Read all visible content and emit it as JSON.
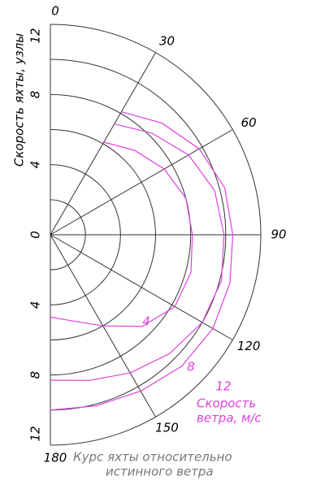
{
  "chart_data": {
    "type": "polar",
    "ylabel": "Скорость яхты, узлы",
    "xlabel": [
      "Курс яхты относительно",
      "истинного ветра"
    ],
    "legend_title": [
      "Скорость",
      "ветра, м/с"
    ],
    "rlim": [
      0,
      12
    ],
    "rticks": [
      0,
      4,
      8,
      12
    ],
    "rgrid": [
      2,
      4,
      6,
      8,
      10,
      12
    ],
    "thetaticks": [
      0,
      30,
      60,
      90,
      120,
      150,
      180
    ],
    "x": [
      30,
      45,
      60,
      75,
      90,
      105,
      120,
      135,
      150,
      165,
      180
    ],
    "series": [
      {
        "name": "4",
        "color": "#e040e0",
        "values": [
          6.1,
          6.8,
          7.5,
          8.0,
          8.1,
          8.3,
          8.2,
          7.4,
          6.0,
          5.1,
          4.7
        ]
      },
      {
        "name": "8",
        "color": "#e040e0",
        "values": [
          7.3,
          8.2,
          9.1,
          9.7,
          9.9,
          10.1,
          10.0,
          9.6,
          9.1,
          8.6,
          8.3
        ]
      },
      {
        "name": "12",
        "color": "#e040e0",
        "values": [
          8.1,
          9.0,
          9.8,
          10.3,
          10.4,
          10.6,
          10.7,
          10.6,
          10.3,
          10.1,
          10.0
        ]
      }
    ]
  }
}
